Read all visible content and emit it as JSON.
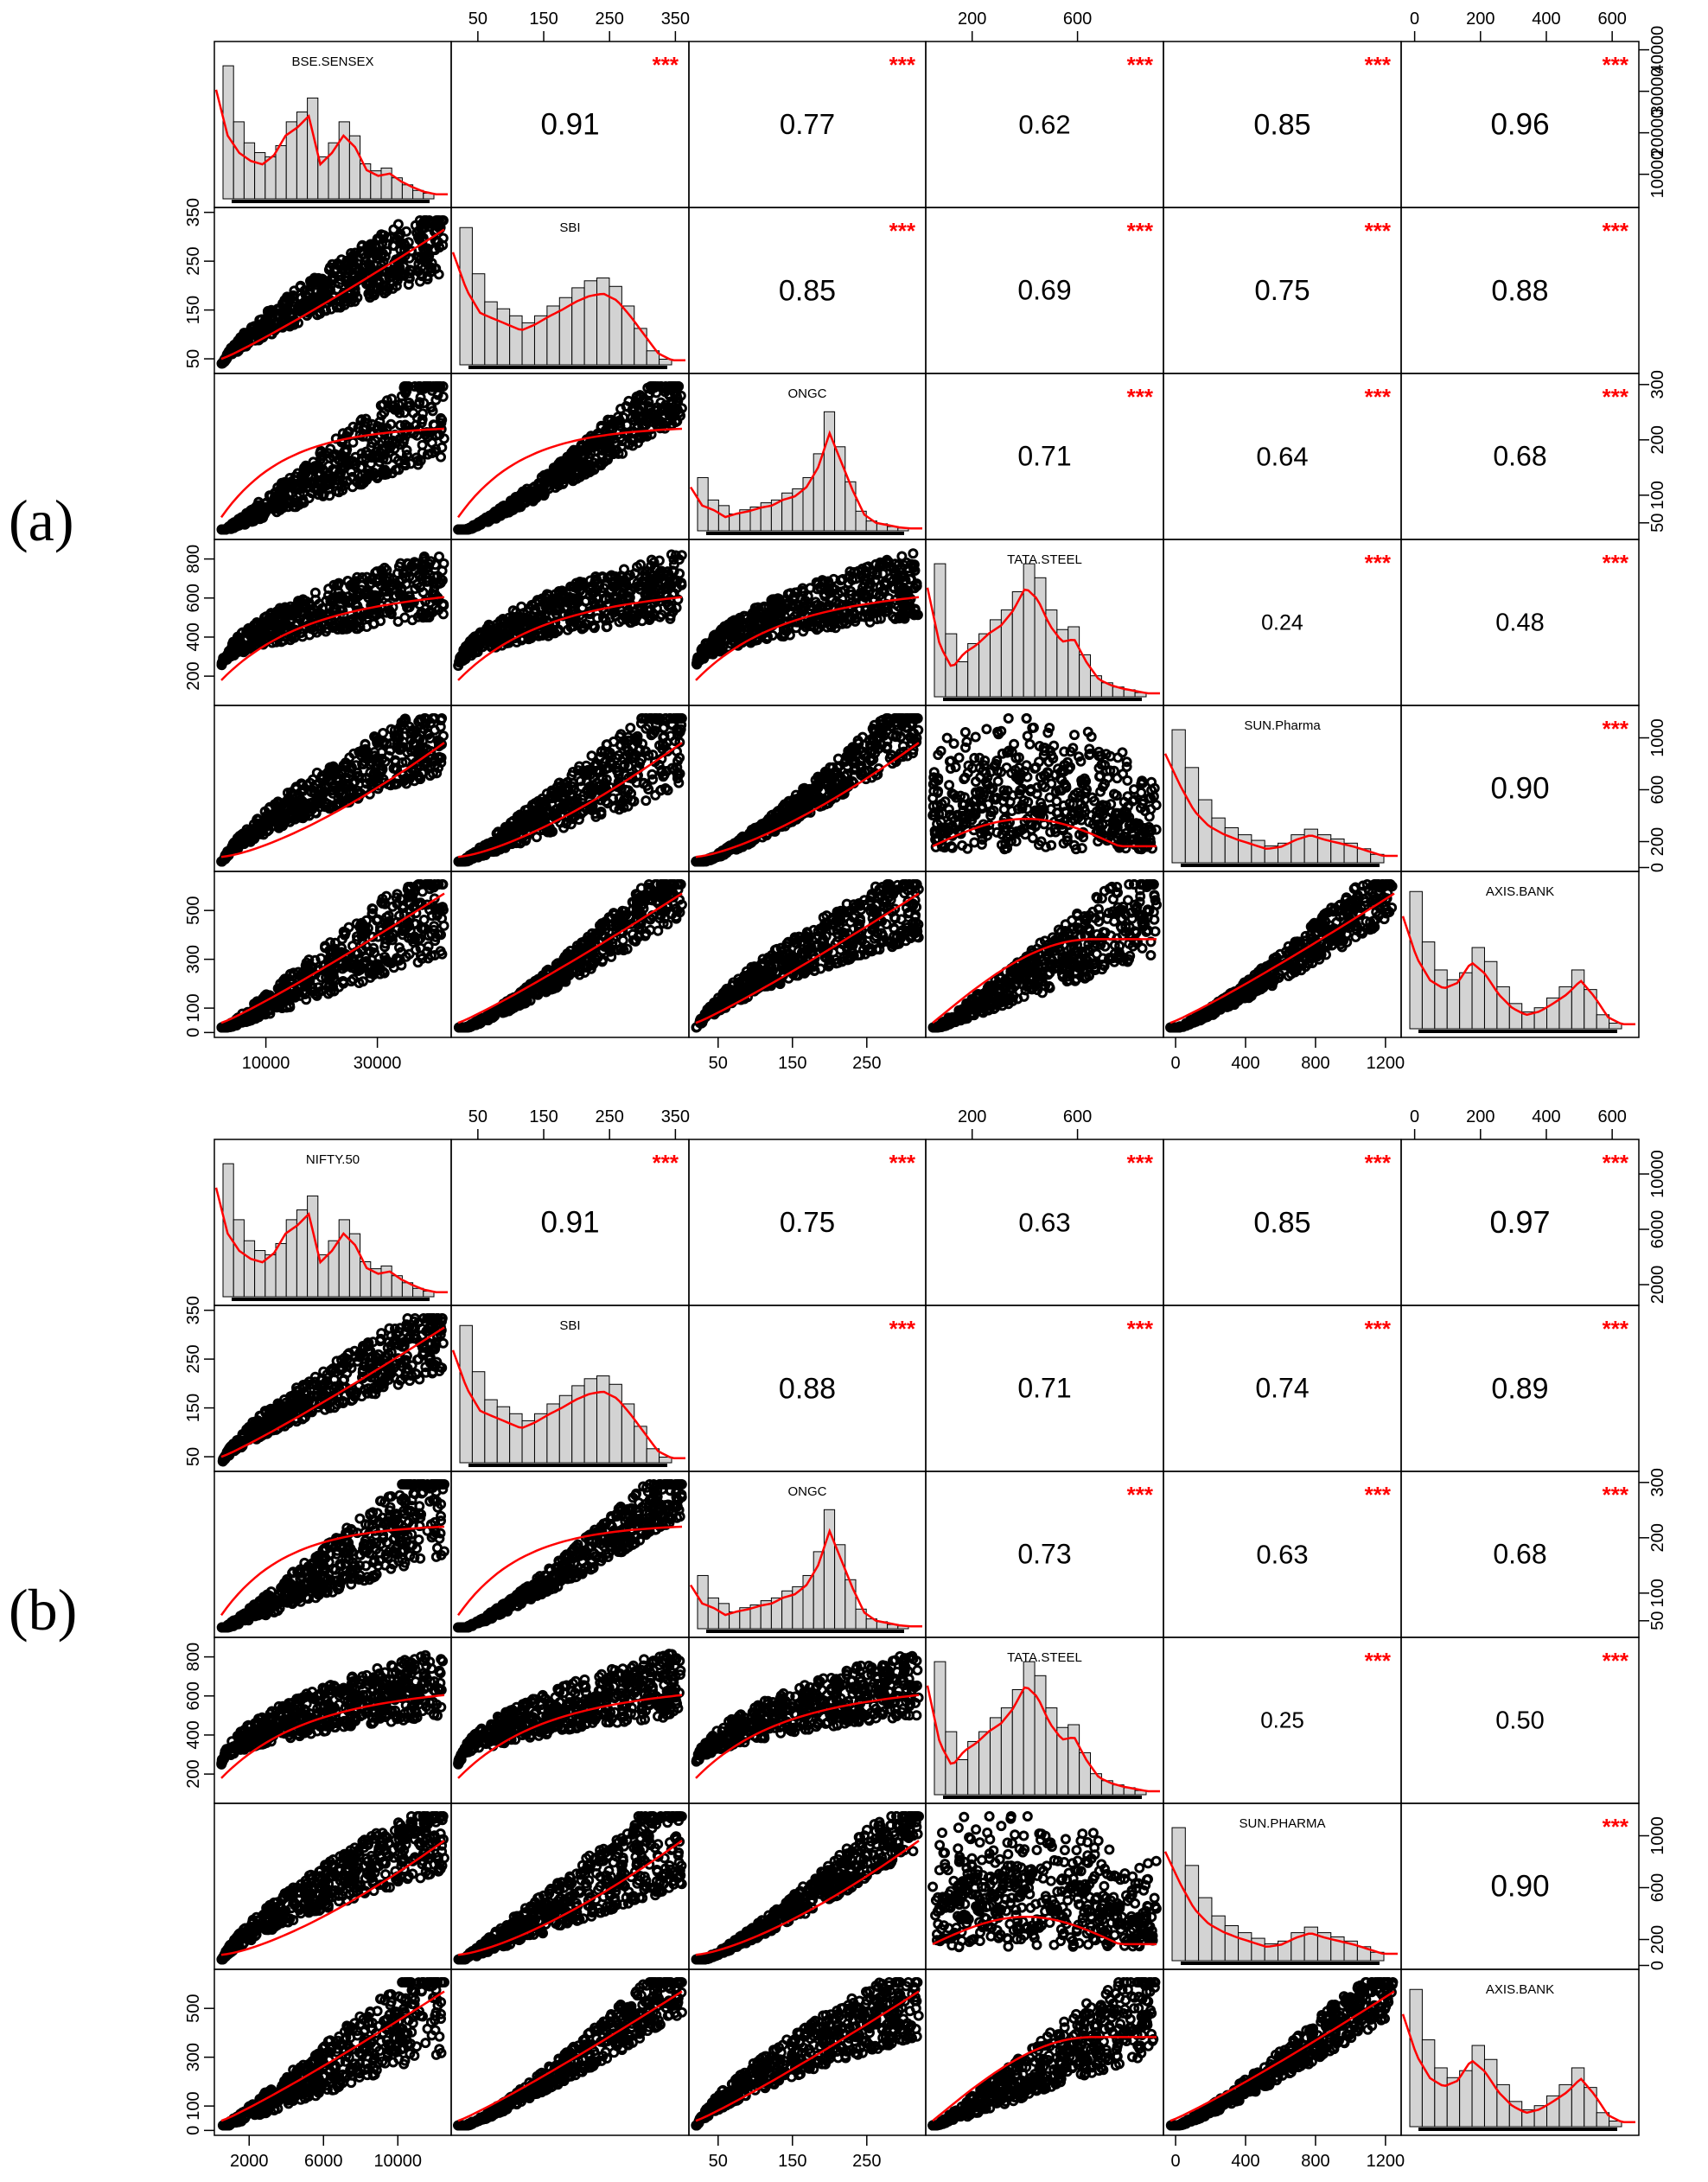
{
  "chart_data": [
    {
      "type": "scatter",
      "label": "(a)",
      "variables": [
        "BSE.SENSEX",
        "SBI",
        "ONGC",
        "TATA.STEEL",
        "SUN.Pharma",
        "AXIS.BANK"
      ],
      "correlations": [
        {
          "row": 0,
          "col": 1,
          "r": "0.91",
          "sig": "***"
        },
        {
          "row": 0,
          "col": 2,
          "r": "0.77",
          "sig": "***"
        },
        {
          "row": 0,
          "col": 3,
          "r": "0.62",
          "sig": "***"
        },
        {
          "row": 0,
          "col": 4,
          "r": "0.85",
          "sig": "***"
        },
        {
          "row": 0,
          "col": 5,
          "r": "0.96",
          "sig": "***"
        },
        {
          "row": 1,
          "col": 2,
          "r": "0.85",
          "sig": "***"
        },
        {
          "row": 1,
          "col": 3,
          "r": "0.69",
          "sig": "***"
        },
        {
          "row": 1,
          "col": 4,
          "r": "0.75",
          "sig": "***"
        },
        {
          "row": 1,
          "col": 5,
          "r": "0.88",
          "sig": "***"
        },
        {
          "row": 2,
          "col": 3,
          "r": "0.71",
          "sig": "***"
        },
        {
          "row": 2,
          "col": 4,
          "r": "0.64",
          "sig": "***"
        },
        {
          "row": 2,
          "col": 5,
          "r": "0.68",
          "sig": "***"
        },
        {
          "row": 3,
          "col": 4,
          "r": "0.24",
          "sig": "***"
        },
        {
          "row": 3,
          "col": 5,
          "r": "0.48",
          "sig": "***"
        },
        {
          "row": 4,
          "col": 5,
          "r": "0.90",
          "sig": "***"
        }
      ],
      "axis_ticks": {
        "0": {
          "range": [
            2000,
            42000
          ],
          "ticks": [
            10000,
            20000,
            30000,
            40000
          ],
          "tick_labels": [
            "10000",
            "20000",
            "30000",
            "40000"
          ],
          "bottom_ticks": [
            10000,
            30000
          ],
          "bottom_labels": [
            "10000",
            "30000"
          ]
        },
        "1": {
          "range": [
            20,
            360
          ],
          "ticks": [
            50,
            150,
            250,
            350
          ],
          "tick_labels": [
            "50",
            "150",
            "250",
            "350"
          ]
        },
        "2": {
          "range": [
            20,
            320
          ],
          "ticks": [
            50,
            100,
            200,
            300
          ],
          "tick_labels": [
            "50",
            "100",
            "200",
            "300"
          ],
          "bottom_ticks": [
            50,
            150,
            250
          ],
          "bottom_labels": [
            "50",
            "150",
            "250"
          ]
        },
        "3": {
          "range": [
            50,
            900
          ],
          "ticks": [
            200,
            400,
            600,
            800
          ],
          "tick_labels": [
            "200",
            "400",
            "600",
            "800"
          ],
          "top_ticks": [
            200,
            600
          ],
          "top_labels": [
            "200",
            "600"
          ]
        },
        "4": {
          "range": [
            -30,
            1250
          ],
          "ticks": [
            0,
            200,
            600,
            1000
          ],
          "tick_labels": [
            "0",
            "200",
            "600",
            "1000"
          ],
          "bottom_ticks": [
            0,
            400,
            800,
            1200
          ],
          "bottom_labels": [
            "0",
            "400",
            "800",
            "1200"
          ]
        },
        "5": {
          "range": [
            -20,
            660
          ],
          "ticks": [
            0,
            100,
            300,
            500
          ],
          "tick_labels": [
            "0",
            "100",
            "300",
            "500"
          ],
          "top_ticks": [
            0,
            200,
            400,
            600
          ],
          "top_labels": [
            "0",
            "200",
            "400",
            "600"
          ]
        }
      }
    },
    {
      "type": "scatter",
      "label": "(b)",
      "variables": [
        "NIFTY.50",
        "SBI",
        "ONGC",
        "TATA.STEEL",
        "SUN.PHARMA",
        "AXIS.BANK"
      ],
      "correlations": [
        {
          "row": 0,
          "col": 1,
          "r": "0.91",
          "sig": "***"
        },
        {
          "row": 0,
          "col": 2,
          "r": "0.75",
          "sig": "***"
        },
        {
          "row": 0,
          "col": 3,
          "r": "0.63",
          "sig": "***"
        },
        {
          "row": 0,
          "col": 4,
          "r": "0.85",
          "sig": "***"
        },
        {
          "row": 0,
          "col": 5,
          "r": "0.97",
          "sig": "***"
        },
        {
          "row": 1,
          "col": 2,
          "r": "0.88",
          "sig": "***"
        },
        {
          "row": 1,
          "col": 3,
          "r": "0.71",
          "sig": "***"
        },
        {
          "row": 1,
          "col": 4,
          "r": "0.74",
          "sig": "***"
        },
        {
          "row": 1,
          "col": 5,
          "r": "0.89",
          "sig": "***"
        },
        {
          "row": 2,
          "col": 3,
          "r": "0.73",
          "sig": "***"
        },
        {
          "row": 2,
          "col": 4,
          "r": "0.63",
          "sig": "***"
        },
        {
          "row": 2,
          "col": 5,
          "r": "0.68",
          "sig": "***"
        },
        {
          "row": 3,
          "col": 4,
          "r": "0.25",
          "sig": "***"
        },
        {
          "row": 3,
          "col": 5,
          "r": "0.50",
          "sig": "***"
        },
        {
          "row": 4,
          "col": 5,
          "r": "0.90",
          "sig": "***"
        }
      ],
      "axis_ticks": {
        "0": {
          "range": [
            500,
            12500
          ],
          "ticks": [
            2000,
            6000,
            10000
          ],
          "tick_labels": [
            "2000",
            "6000",
            "10000"
          ],
          "bottom_ticks": [
            2000,
            6000,
            10000
          ],
          "bottom_labels": [
            "2000",
            "6000",
            "10000"
          ]
        },
        "1": {
          "range": [
            20,
            360
          ],
          "ticks": [
            50,
            150,
            250,
            350
          ],
          "tick_labels": [
            "50",
            "150",
            "250",
            "350"
          ]
        },
        "2": {
          "range": [
            20,
            320
          ],
          "ticks": [
            50,
            100,
            200,
            300
          ],
          "tick_labels": [
            "50",
            "100",
            "200",
            "300"
          ],
          "bottom_ticks": [
            50,
            150,
            250
          ],
          "bottom_labels": [
            "50",
            "150",
            "250"
          ]
        },
        "3": {
          "range": [
            50,
            900
          ],
          "ticks": [
            200,
            400,
            600,
            800
          ],
          "tick_labels": [
            "200",
            "400",
            "600",
            "800"
          ],
          "top_ticks": [
            200,
            600
          ],
          "top_labels": [
            "200",
            "600"
          ]
        },
        "4": {
          "range": [
            -30,
            1250
          ],
          "ticks": [
            0,
            200,
            600,
            1000
          ],
          "tick_labels": [
            "0",
            "200",
            "600",
            "1000"
          ],
          "bottom_ticks": [
            0,
            400,
            800,
            1200
          ],
          "bottom_labels": [
            "0",
            "400",
            "800",
            "1200"
          ]
        },
        "5": {
          "range": [
            -20,
            660
          ],
          "ticks": [
            0,
            100,
            300,
            500
          ],
          "tick_labels": [
            "0",
            "100",
            "300",
            "500"
          ],
          "top_ticks": [
            0,
            200,
            400,
            600
          ],
          "top_labels": [
            "0",
            "200",
            "400",
            "600"
          ]
        }
      }
    }
  ],
  "colors": {
    "stars": "#ff0000",
    "smooth": "#ff0000",
    "bar_fill": "#d3d3d3",
    "points": "#000000"
  }
}
